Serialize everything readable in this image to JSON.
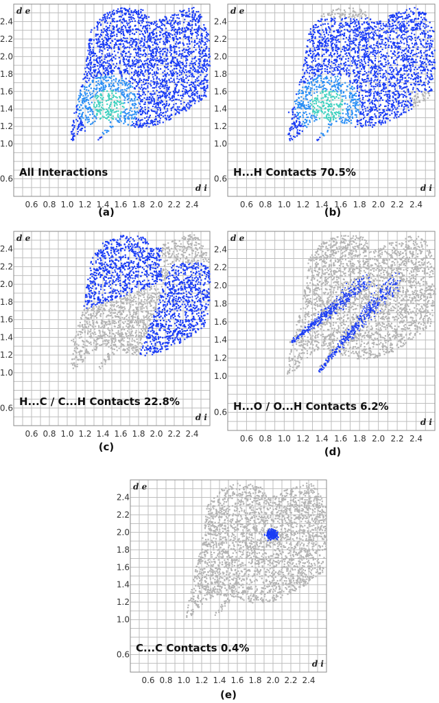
{
  "chart_data": [
    {
      "type": "heatmap",
      "panel": "(a)",
      "label": "All Interactions",
      "xlabel": "d i",
      "ylabel": "d e",
      "xlim": [
        0.4,
        2.6
      ],
      "ylim": [
        0.4,
        2.6
      ],
      "x_ticks": [
        "0.6",
        "0.8",
        "1.0",
        "1.2",
        "1.4",
        "1.6",
        "1.8",
        "2.0",
        "2.2",
        "2.4"
      ],
      "y_ticks": [
        "0.6",
        "1.0",
        "1.2",
        "1.4",
        "1.6",
        "1.8",
        "2.0",
        "2.2",
        "2.4"
      ],
      "highlight": "full",
      "highlight_color": "#1a3cf5",
      "background_color": "#b4b4b4"
    },
    {
      "type": "heatmap",
      "panel": "(b)",
      "label": "H...H Contacts 70.5%",
      "contact": "H...H",
      "percentage": 70.5,
      "xlabel": "d i",
      "ylabel": "d e",
      "xlim": [
        0.4,
        2.6
      ],
      "ylim": [
        0.4,
        2.6
      ],
      "x_ticks": [
        "0.6",
        "0.8",
        "1.0",
        "1.2",
        "1.4",
        "1.6",
        "1.8",
        "2.0",
        "2.2",
        "2.4"
      ],
      "y_ticks": [
        "0.6",
        "1.0",
        "1.2",
        "1.4",
        "1.6",
        "1.8",
        "2.0",
        "2.2",
        "2.4"
      ],
      "highlight": "hh",
      "highlight_color": "#1a3cf5",
      "background_color": "#b4b4b4"
    },
    {
      "type": "heatmap",
      "panel": "(c)",
      "label": "H...C / C...H Contacts 22.8%",
      "contact": "H...C / C...H",
      "percentage": 22.8,
      "xlabel": "d i",
      "ylabel": "d e",
      "xlim": [
        0.4,
        2.6
      ],
      "ylim": [
        0.4,
        2.6
      ],
      "x_ticks": [
        "0.6",
        "0.8",
        "1.0",
        "1.2",
        "1.4",
        "1.6",
        "1.8",
        "2.0",
        "2.2",
        "2.4"
      ],
      "y_ticks": [
        "0.6",
        "1.0",
        "1.2",
        "1.4",
        "1.6",
        "1.8",
        "2.0",
        "2.2",
        "2.4"
      ],
      "highlight": "hc",
      "highlight_color": "#1a3cf5",
      "background_color": "#b4b4b4"
    },
    {
      "type": "heatmap",
      "panel": "(d)",
      "label": "H...O / O...H Contacts 6.2%",
      "contact": "H...O / O...H",
      "percentage": 6.2,
      "xlabel": "d i",
      "ylabel": "d e",
      "xlim": [
        0.4,
        2.6
      ],
      "ylim": [
        0.4,
        2.6
      ],
      "x_ticks": [
        "0.6",
        "0.8",
        "1.0",
        "1.2",
        "1.4",
        "1.6",
        "1.8",
        "2.0",
        "2.2",
        "2.4"
      ],
      "y_ticks": [
        "0.6",
        "1.0",
        "1.2",
        "1.4",
        "1.6",
        "1.8",
        "2.0",
        "2.2",
        "2.4"
      ],
      "highlight": "ho",
      "highlight_color": "#1a3cf5",
      "background_color": "#b4b4b4"
    },
    {
      "type": "heatmap",
      "panel": "(e)",
      "label": "C...C Contacts 0.4%",
      "contact": "C...C",
      "percentage": 0.4,
      "xlabel": "d i",
      "ylabel": "d e",
      "xlim": [
        0.4,
        2.6
      ],
      "ylim": [
        0.4,
        2.6
      ],
      "x_ticks": [
        "0.6",
        "0.8",
        "1.0",
        "1.2",
        "1.4",
        "1.6",
        "1.8",
        "2.0",
        "2.2",
        "2.4"
      ],
      "y_ticks": [
        "0.6",
        "1.0",
        "1.2",
        "1.4",
        "1.6",
        "1.8",
        "2.0",
        "2.2",
        "2.4"
      ],
      "highlight": "cc",
      "highlight_color": "#1a3cf5",
      "background_color": "#b4b4b4"
    }
  ]
}
